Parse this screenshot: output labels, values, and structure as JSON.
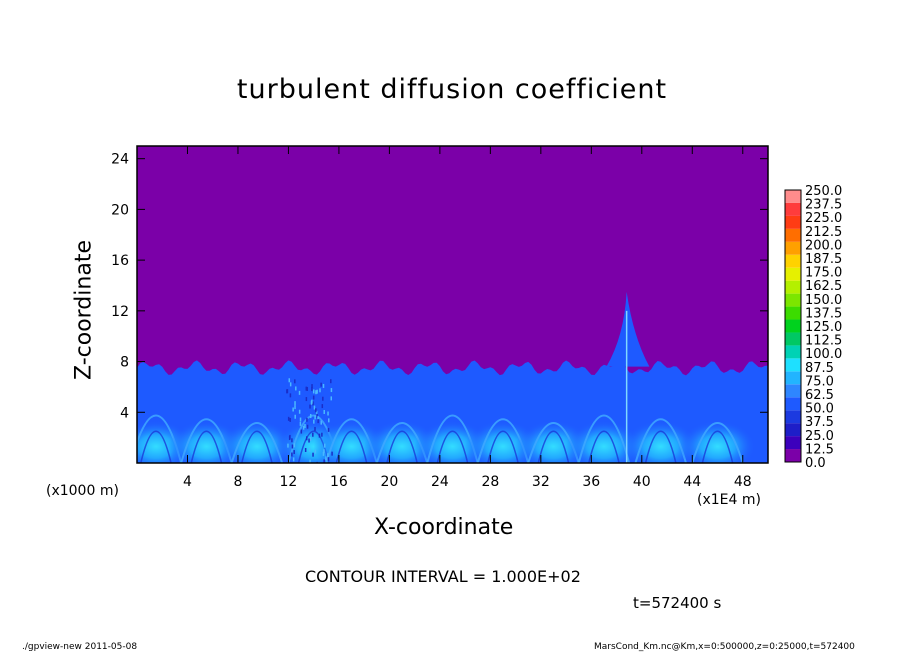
{
  "header": {
    "title": "turbulent diffusion coefficient"
  },
  "axes": {
    "xlabel": "X-coordinate",
    "ylabel": "Z-coordinate",
    "x_unit_note": "(x1000 m)",
    "x_scale_note": "(x1E4 m)"
  },
  "footer": {
    "contour_interval": "CONTOUR INTERVAL = 1.000E+02",
    "time": "t=572400 s",
    "left": "./gpview-new   2011-05-08",
    "right": "MarsCond_Km.nc@Km,x=0:500000,z=0:25000,t=572400"
  },
  "colors": {
    "background_field": "#7b00a8",
    "plot_border": "#000000"
  },
  "chart_data": {
    "type": "heatmap",
    "title": "turbulent diffusion coefficient",
    "xlabel": "X-coordinate",
    "ylabel": "Z-coordinate",
    "xlim": [
      0,
      50
    ],
    "ylim": [
      0,
      25
    ],
    "xticks": [
      4,
      8,
      12,
      16,
      20,
      24,
      28,
      32,
      36,
      40,
      44,
      48
    ],
    "yticks": [
      4,
      8,
      12,
      16,
      20,
      24
    ],
    "boundary_layer_top": 7.5,
    "plume": {
      "x": 38.8,
      "top": 13.5
    },
    "colorbar": {
      "levels": [
        "0.0",
        "12.5",
        "25.0",
        "37.5",
        "50.0",
        "62.5",
        "75.0",
        "87.5",
        "100.0",
        "112.5",
        "125.0",
        "137.5",
        "150.0",
        "162.5",
        "175.0",
        "187.5",
        "200.0",
        "212.5",
        "225.0",
        "237.5",
        "250.0"
      ],
      "colors": [
        "#7b00a8",
        "#3c00bc",
        "#1e1ec8",
        "#1c3ae0",
        "#1e5aff",
        "#2e86ff",
        "#22b4ff",
        "#1ee0ff",
        "#00d2b4",
        "#00c864",
        "#00d21e",
        "#3cdc00",
        "#7ce600",
        "#b4f000",
        "#e6f000",
        "#ffd200",
        "#ffa000",
        "#ff6e00",
        "#ff3c14",
        "#ff3c3c",
        "#ff8c8c"
      ]
    }
  }
}
